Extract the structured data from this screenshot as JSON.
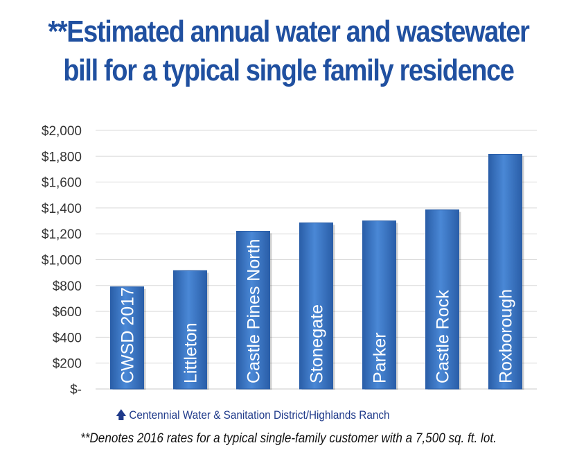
{
  "title_line1": "**Estimated annual water and wastewater",
  "title_line2": "bill for a typical single family residence",
  "note": "Centennial Water & Sanitation District/Highlands Ranch",
  "footnote": "**Denotes 2016 rates for a typical single-family customer with a 7,500 sq. ft. lot.",
  "chart_data": {
    "type": "bar",
    "categories": [
      "CWSD 2017",
      "Littleton",
      "Castle Pines North",
      "Stonegate",
      "Parker",
      "Castle Rock",
      "Roxborough"
    ],
    "values": [
      790,
      915,
      1220,
      1285,
      1300,
      1385,
      1815
    ],
    "ylim": [
      0,
      2000
    ],
    "yticks": [
      0,
      200,
      400,
      600,
      800,
      1000,
      1200,
      1400,
      1600,
      1800,
      2000
    ],
    "ytick_labels": [
      "$-",
      "$200",
      "$400",
      "$600",
      "$800",
      "$1,000",
      "$1,200",
      "$1,400",
      "$1,600",
      "$1,800",
      "$2,000"
    ],
    "bar_color": "#3a76c4",
    "grid": true,
    "labels_inside_bars": true
  }
}
